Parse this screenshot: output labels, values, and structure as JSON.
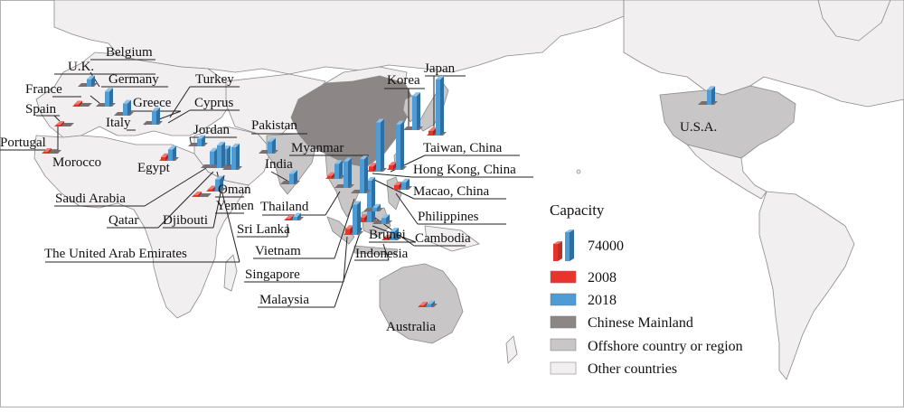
{
  "colors": {
    "ocean": "#ffffff",
    "other_countries": "#f2eff0",
    "offshore": "#c9c6c7",
    "chinese_mainland": "#8c8687",
    "bar_2008": "#e8352b",
    "bar_2018": "#4f9bd3",
    "border": "#8a8a8a"
  },
  "legend": {
    "title": "Capacity",
    "scale_value": "74000",
    "items": [
      {
        "label": "2008",
        "color": "#e8352b"
      },
      {
        "label": "2018",
        "color": "#4f9bd3"
      },
      {
        "label": "Chinese Mainland",
        "color": "#8c8687"
      },
      {
        "label": "Offshore country or region",
        "color": "#c9c6c7"
      },
      {
        "label": "Other countries",
        "color": "#f2eff0"
      }
    ]
  },
  "places": [
    "U.K.",
    "Belgium",
    "France",
    "Germany",
    "Spain",
    "Italy",
    "Portugal",
    "Greece",
    "Morocco",
    "Turkey",
    "Cyprus",
    "Jordan",
    "Egypt",
    "Saudi Arabia",
    "Qatar",
    "Djibouti",
    "Oman",
    "Yemen",
    "The United Arab Emirates",
    "Pakistan",
    "India",
    "Sri Lanka",
    "Myanmar",
    "Thailand",
    "Vietnam",
    "Singapore",
    "Malaysia",
    "Brunei",
    "Indonesia",
    "Cambodia",
    "Philippines",
    "Macao, China",
    "Hong Kong, China",
    "Taiwan, China",
    "Korea",
    "Japan",
    "U.S.A.",
    "Australia"
  ],
  "capacity_2008": {
    "France": 3000,
    "Portugal": 1500,
    "Morocco": 1500,
    "Egypt": 5000,
    "Djibouti": 1500,
    "Yemen": 3000,
    "Sri Lanka": 2000,
    "Myanmar": 4000,
    "Malaysia": 6000,
    "Singapore": 8000,
    "Indonesia": 3000,
    "Philippines": 6000,
    "Hong Kong, China": 7000,
    "Taiwan, China": 6000,
    "Japan": 6000,
    "Australia": 1500
  },
  "capacity_2018": {
    "U.K.": 10000,
    "Germany": 20000,
    "Italy": 16000,
    "Greece": 18000,
    "Egypt": 15000,
    "Jordan": 10000,
    "Saudi Arabia": 22000,
    "The United Arab Emirates": 25000,
    "Qatar": 30000,
    "Oman": 30000,
    "Yemen": 16000,
    "Pakistan": 16000,
    "India": 14000,
    "Sri Lanka": 5000,
    "Myanmar": 20000,
    "Thailand": 35000,
    "Vietnam": 45000,
    "Singapore": 40000,
    "Malaysia": 55000,
    "Brunei": 8000,
    "Indonesia": 12000,
    "Cambodia": 5000,
    "Philippines": 10000,
    "Hong Kong, China": 65000,
    "Taiwan, China": 60000,
    "Korea": 45000,
    "Japan": 74000,
    "U.S.A.": 20000,
    "Australia": 4000
  }
}
